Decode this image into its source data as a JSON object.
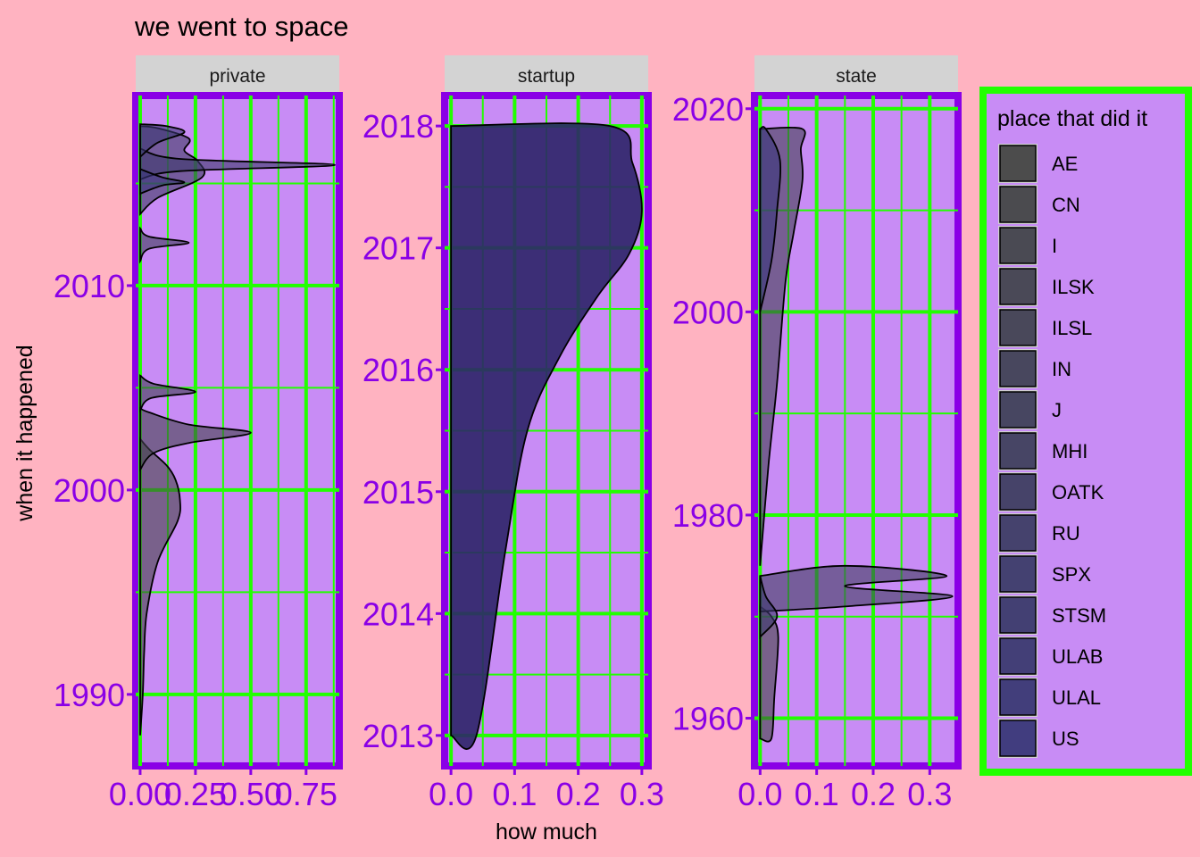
{
  "chart_data": {
    "type": "area",
    "title": "we went to space",
    "xlabel": "how much",
    "ylabel": "when it happened",
    "legend": {
      "title": "place that did it",
      "position": "right",
      "entries": [
        "AE",
        "CN",
        "I",
        "ILSK",
        "ILSL",
        "IN",
        "J",
        "MHI",
        "OATK",
        "RU",
        "SPX",
        "STSM",
        "ULAB",
        "ULAL",
        "US"
      ]
    },
    "colors": {
      "background": "#ffb3c1",
      "panel": "#c88cf5",
      "panel_border": "#8a00e6",
      "grid": "#22ff00",
      "strip": "#d3d3d3",
      "legend_border": "#22ff00",
      "fill_start": "#444444",
      "fill_end": "#39357a"
    },
    "facets": [
      {
        "name": "private",
        "xlim": [
          -0.02,
          0.9
        ],
        "ylim": [
          1986.5,
          2019.3
        ],
        "xticks": [
          "0.00",
          "0.25",
          "0.50",
          "0.75"
        ],
        "xtick_values": [
          0,
          0.25,
          0.5,
          0.75
        ],
        "yticks": [
          "1990",
          "2000",
          "2010"
        ],
        "ytick_values": [
          1990,
          2000,
          2010
        ],
        "curves": [
          {
            "points": [
              [
                0,
                1988
              ],
              [
                0.012,
                1990
              ],
              [
                0.018,
                1992
              ],
              [
                0.03,
                1994
              ],
              [
                0.08,
                1996.5
              ],
              [
                0.17,
                1998.5
              ],
              [
                0.18,
                1999.5
              ],
              [
                0.16,
                2000.5
              ],
              [
                0.12,
                2001.2
              ],
              [
                0.04,
                2002
              ],
              [
                0,
                2002.5
              ]
            ]
          },
          {
            "points": [
              [
                0,
                2001
              ],
              [
                0.06,
                2001.8
              ],
              [
                0.22,
                2002.3
              ],
              [
                0.5,
                2002.8
              ],
              [
                0.22,
                2003.2
              ],
              [
                0.04,
                2003.8
              ],
              [
                0,
                2004
              ]
            ]
          },
          {
            "points": [
              [
                0,
                2003.9
              ],
              [
                0.05,
                2004.5
              ],
              [
                0.25,
                2004.8
              ],
              [
                0.06,
                2005.2
              ],
              [
                0,
                2005.6
              ]
            ]
          },
          {
            "points": [
              [
                0,
                2011.2
              ],
              [
                0.04,
                2011.8
              ],
              [
                0.22,
                2012.1
              ],
              [
                0.04,
                2012.4
              ],
              [
                0,
                2012.8
              ]
            ]
          },
          {
            "points": [
              [
                0,
                2013.5
              ],
              [
                0.08,
                2014.3
              ],
              [
                0.28,
                2015.3
              ],
              [
                0.26,
                2016.1
              ],
              [
                0.2,
                2016.6
              ],
              [
                0.22,
                2017.2
              ],
              [
                0.08,
                2017.7
              ],
              [
                0,
                2017.8
              ]
            ]
          },
          {
            "points": [
              [
                0,
                2015.2
              ],
              [
                0.18,
                2015.6
              ],
              [
                0.88,
                2015.9
              ],
              [
                0.18,
                2016.2
              ],
              [
                0,
                2016.7
              ]
            ]
          },
          {
            "points": [
              [
                0,
                2016.3
              ],
              [
                0.08,
                2017
              ],
              [
                0.2,
                2017.5
              ],
              [
                0.12,
                2017.8
              ],
              [
                0,
                2017.9
              ]
            ]
          },
          {
            "points": [
              [
                0,
                2014.5
              ],
              [
                0.1,
                2014.9
              ],
              [
                0.2,
                2015.05
              ],
              [
                0.1,
                2015.3
              ],
              [
                0,
                2015.7
              ]
            ]
          }
        ]
      },
      {
        "name": "startup",
        "xlim": [
          -0.01,
          0.31
        ],
        "ylim": [
          2012.75,
          2018.25
        ],
        "xticks": [
          "0.0",
          "0.1",
          "0.2",
          "0.3"
        ],
        "xtick_values": [
          0,
          0.1,
          0.2,
          0.3
        ],
        "yticks": [
          "2013",
          "2014",
          "2015",
          "2016",
          "2017",
          "2018"
        ],
        "ytick_values": [
          2013,
          2014,
          2015,
          2016,
          2017,
          2018
        ],
        "curves": [
          {
            "points": [
              [
                0,
                2013
              ],
              [
                0.04,
                2013
              ],
              [
                0.085,
                2014.5
              ],
              [
                0.12,
                2015.5
              ],
              [
                0.17,
                2016.1
              ],
              [
                0.23,
                2016.6
              ],
              [
                0.28,
                2016.95
              ],
              [
                0.3,
                2017.3
              ],
              [
                0.285,
                2017.7
              ],
              [
                0.25,
                2018
              ],
              [
                0,
                2018
              ]
            ]
          }
        ]
      },
      {
        "name": "state",
        "xlim": [
          -0.01,
          0.35
        ],
        "ylim": [
          1955.3,
          2021.3
        ],
        "xticks": [
          "0.0",
          "0.1",
          "0.2",
          "0.3"
        ],
        "xtick_values": [
          0,
          0.1,
          0.2,
          0.3
        ],
        "yticks": [
          "1960",
          "1980",
          "2000",
          "2020"
        ],
        "ytick_values": [
          1960,
          1980,
          2000,
          2020
        ],
        "curves": [
          {
            "points": [
              [
                0,
                1958
              ],
              [
                0.02,
                1958
              ],
              [
                0.025,
                1962
              ],
              [
                0.032,
                1968
              ],
              [
                0.02,
                1970
              ],
              [
                0,
                1971
              ]
            ]
          },
          {
            "points": [
              [
                0,
                1975
              ],
              [
                0.015,
                1985
              ],
              [
                0.03,
                1993
              ],
              [
                0.045,
                2003
              ],
              [
                0.06,
                2008
              ],
              [
                0.075,
                2013
              ],
              [
                0.072,
                2016
              ],
              [
                0.075,
                2018
              ],
              [
                0,
                2018
              ]
            ]
          },
          {
            "points": [
              [
                0,
                1974
              ],
              [
                0.15,
                1975
              ],
              [
                0.33,
                1974
              ],
              [
                0.15,
                1973
              ],
              [
                0.34,
                1972
              ],
              [
                0.15,
                1971
              ],
              [
                0,
                1970.5
              ]
            ]
          },
          {
            "points": [
              [
                0,
                1968
              ],
              [
                0.03,
                1970
              ],
              [
                0.01,
                1972
              ],
              [
                0,
                1974
              ]
            ]
          },
          {
            "points": [
              [
                0,
                2000
              ],
              [
                0.02,
                2005
              ],
              [
                0.03,
                2010
              ],
              [
                0.035,
                2015
              ],
              [
                0.01,
                2018
              ],
              [
                0,
                2018
              ]
            ]
          }
        ]
      }
    ]
  }
}
